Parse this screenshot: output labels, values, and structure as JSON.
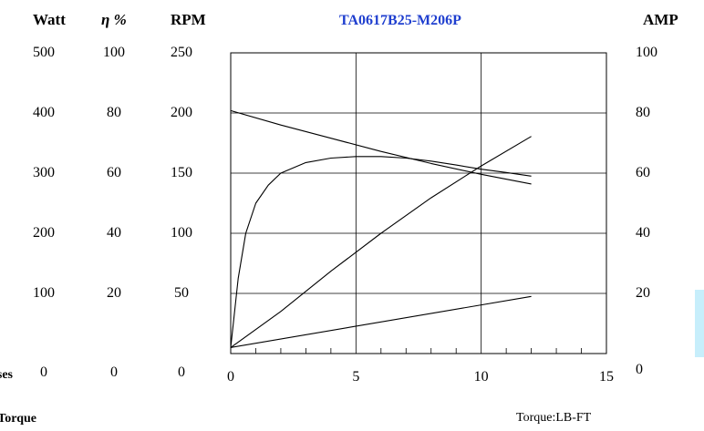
{
  "chart_data": {
    "type": "line",
    "title": "TA0617B25-M206P",
    "title_color": "#1f3fcf",
    "x_axis": {
      "label": "Torque:LB-FT",
      "ticks": [
        "0",
        "5",
        "10",
        "15"
      ],
      "range": [
        0,
        15
      ]
    },
    "left_axes": [
      {
        "header": "Watt",
        "ticks": [
          "0",
          "100",
          "200",
          "300",
          "400",
          "500"
        ],
        "range": [
          0,
          500
        ]
      },
      {
        "header": "η %",
        "ticks": [
          "0",
          "20",
          "40",
          "60",
          "80",
          "100"
        ],
        "range": [
          0,
          100
        ]
      },
      {
        "header": "RPM",
        "ticks": [
          "0",
          "50",
          "100",
          "150",
          "200",
          "250"
        ],
        "range": [
          0,
          250
        ]
      }
    ],
    "right_axis": {
      "header": "AMP",
      "ticks": [
        "0",
        "20",
        "40",
        "60",
        "80",
        "100"
      ],
      "range": [
        0,
        100
      ]
    },
    "grid": true,
    "series": [
      {
        "axis": "RPM",
        "x": [
          0,
          2,
          4,
          6,
          8,
          10,
          12
        ],
        "y": [
          202,
          190,
          179,
          168,
          158,
          149,
          141
        ]
      },
      {
        "axis": "η %",
        "x": [
          0,
          0.3,
          0.6,
          1,
          1.5,
          2,
          3,
          4,
          5,
          6,
          7,
          8,
          9,
          10,
          11,
          12
        ],
        "y": [
          2,
          25,
          40,
          50,
          56,
          60,
          63.5,
          65,
          65.5,
          65.5,
          65,
          64,
          62.7,
          61.3,
          60.2,
          59
        ]
      },
      {
        "axis": "Watt",
        "x": [
          0,
          2,
          4,
          6,
          8,
          10,
          12
        ],
        "y": [
          10,
          70,
          137,
          200,
          259,
          312,
          361
        ]
      },
      {
        "axis": "AMP",
        "x": [
          0,
          12
        ],
        "y": [
          2,
          19
        ]
      }
    ],
    "side_labels": [
      "Losses",
      "Torque"
    ],
    "accent_color": "#c7eefb"
  }
}
